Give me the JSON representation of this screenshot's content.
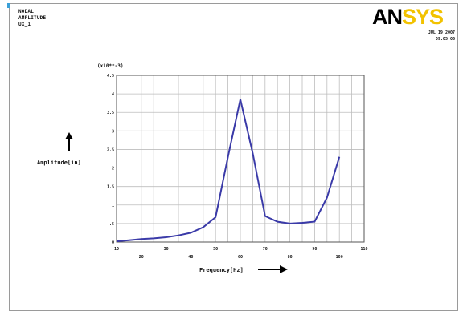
{
  "header": {
    "line1": "NODAL",
    "line2": "AMPLITUDE",
    "line3": "UX_1"
  },
  "logo": {
    "part1": "AN",
    "part2": "SYS"
  },
  "datetime": {
    "date": "JUL 19 2007",
    "time": "09:05:06"
  },
  "colors": {
    "line": "#3a3aa8",
    "grid": "#bdbdbd",
    "logo_accent": "#f2c200"
  },
  "chart_data": {
    "type": "line",
    "xlabel": "Frequency[Hz]",
    "ylabel": "Amplitude[in]",
    "y_multiplier": "(x10**-3)",
    "xlim": [
      10,
      110
    ],
    "ylim": [
      0,
      4.5
    ],
    "xticks": [
      "10",
      "15",
      "20",
      "25",
      "30",
      "35",
      "40",
      "45",
      "50",
      "55",
      "60",
      "65",
      "70",
      "75",
      "80",
      "85",
      "90",
      "95",
      "100",
      "105",
      "110"
    ],
    "xtick_labels_shown": [
      "10",
      "",
      "20",
      "",
      "30",
      "",
      "40",
      "",
      "50",
      "",
      "60",
      "",
      "70",
      "",
      "80",
      "",
      "90",
      "",
      "100",
      "",
      "110"
    ],
    "yticks": [
      "0",
      ".5",
      "1",
      "1.5",
      "2",
      "2.5",
      "3",
      "3.5",
      "4",
      "4.5"
    ],
    "grid": true,
    "series": [
      {
        "x": [
          10,
          15,
          20,
          25,
          30,
          35,
          40,
          45,
          50,
          55,
          60,
          65,
          70,
          75,
          80,
          85,
          90,
          95,
          100
        ],
        "y": [
          0.02,
          0.05,
          0.08,
          0.1,
          0.13,
          0.18,
          0.25,
          0.4,
          0.67,
          2.3,
          3.85,
          2.4,
          0.7,
          0.55,
          0.5,
          0.52,
          0.55,
          1.2,
          2.3
        ]
      }
    ]
  }
}
